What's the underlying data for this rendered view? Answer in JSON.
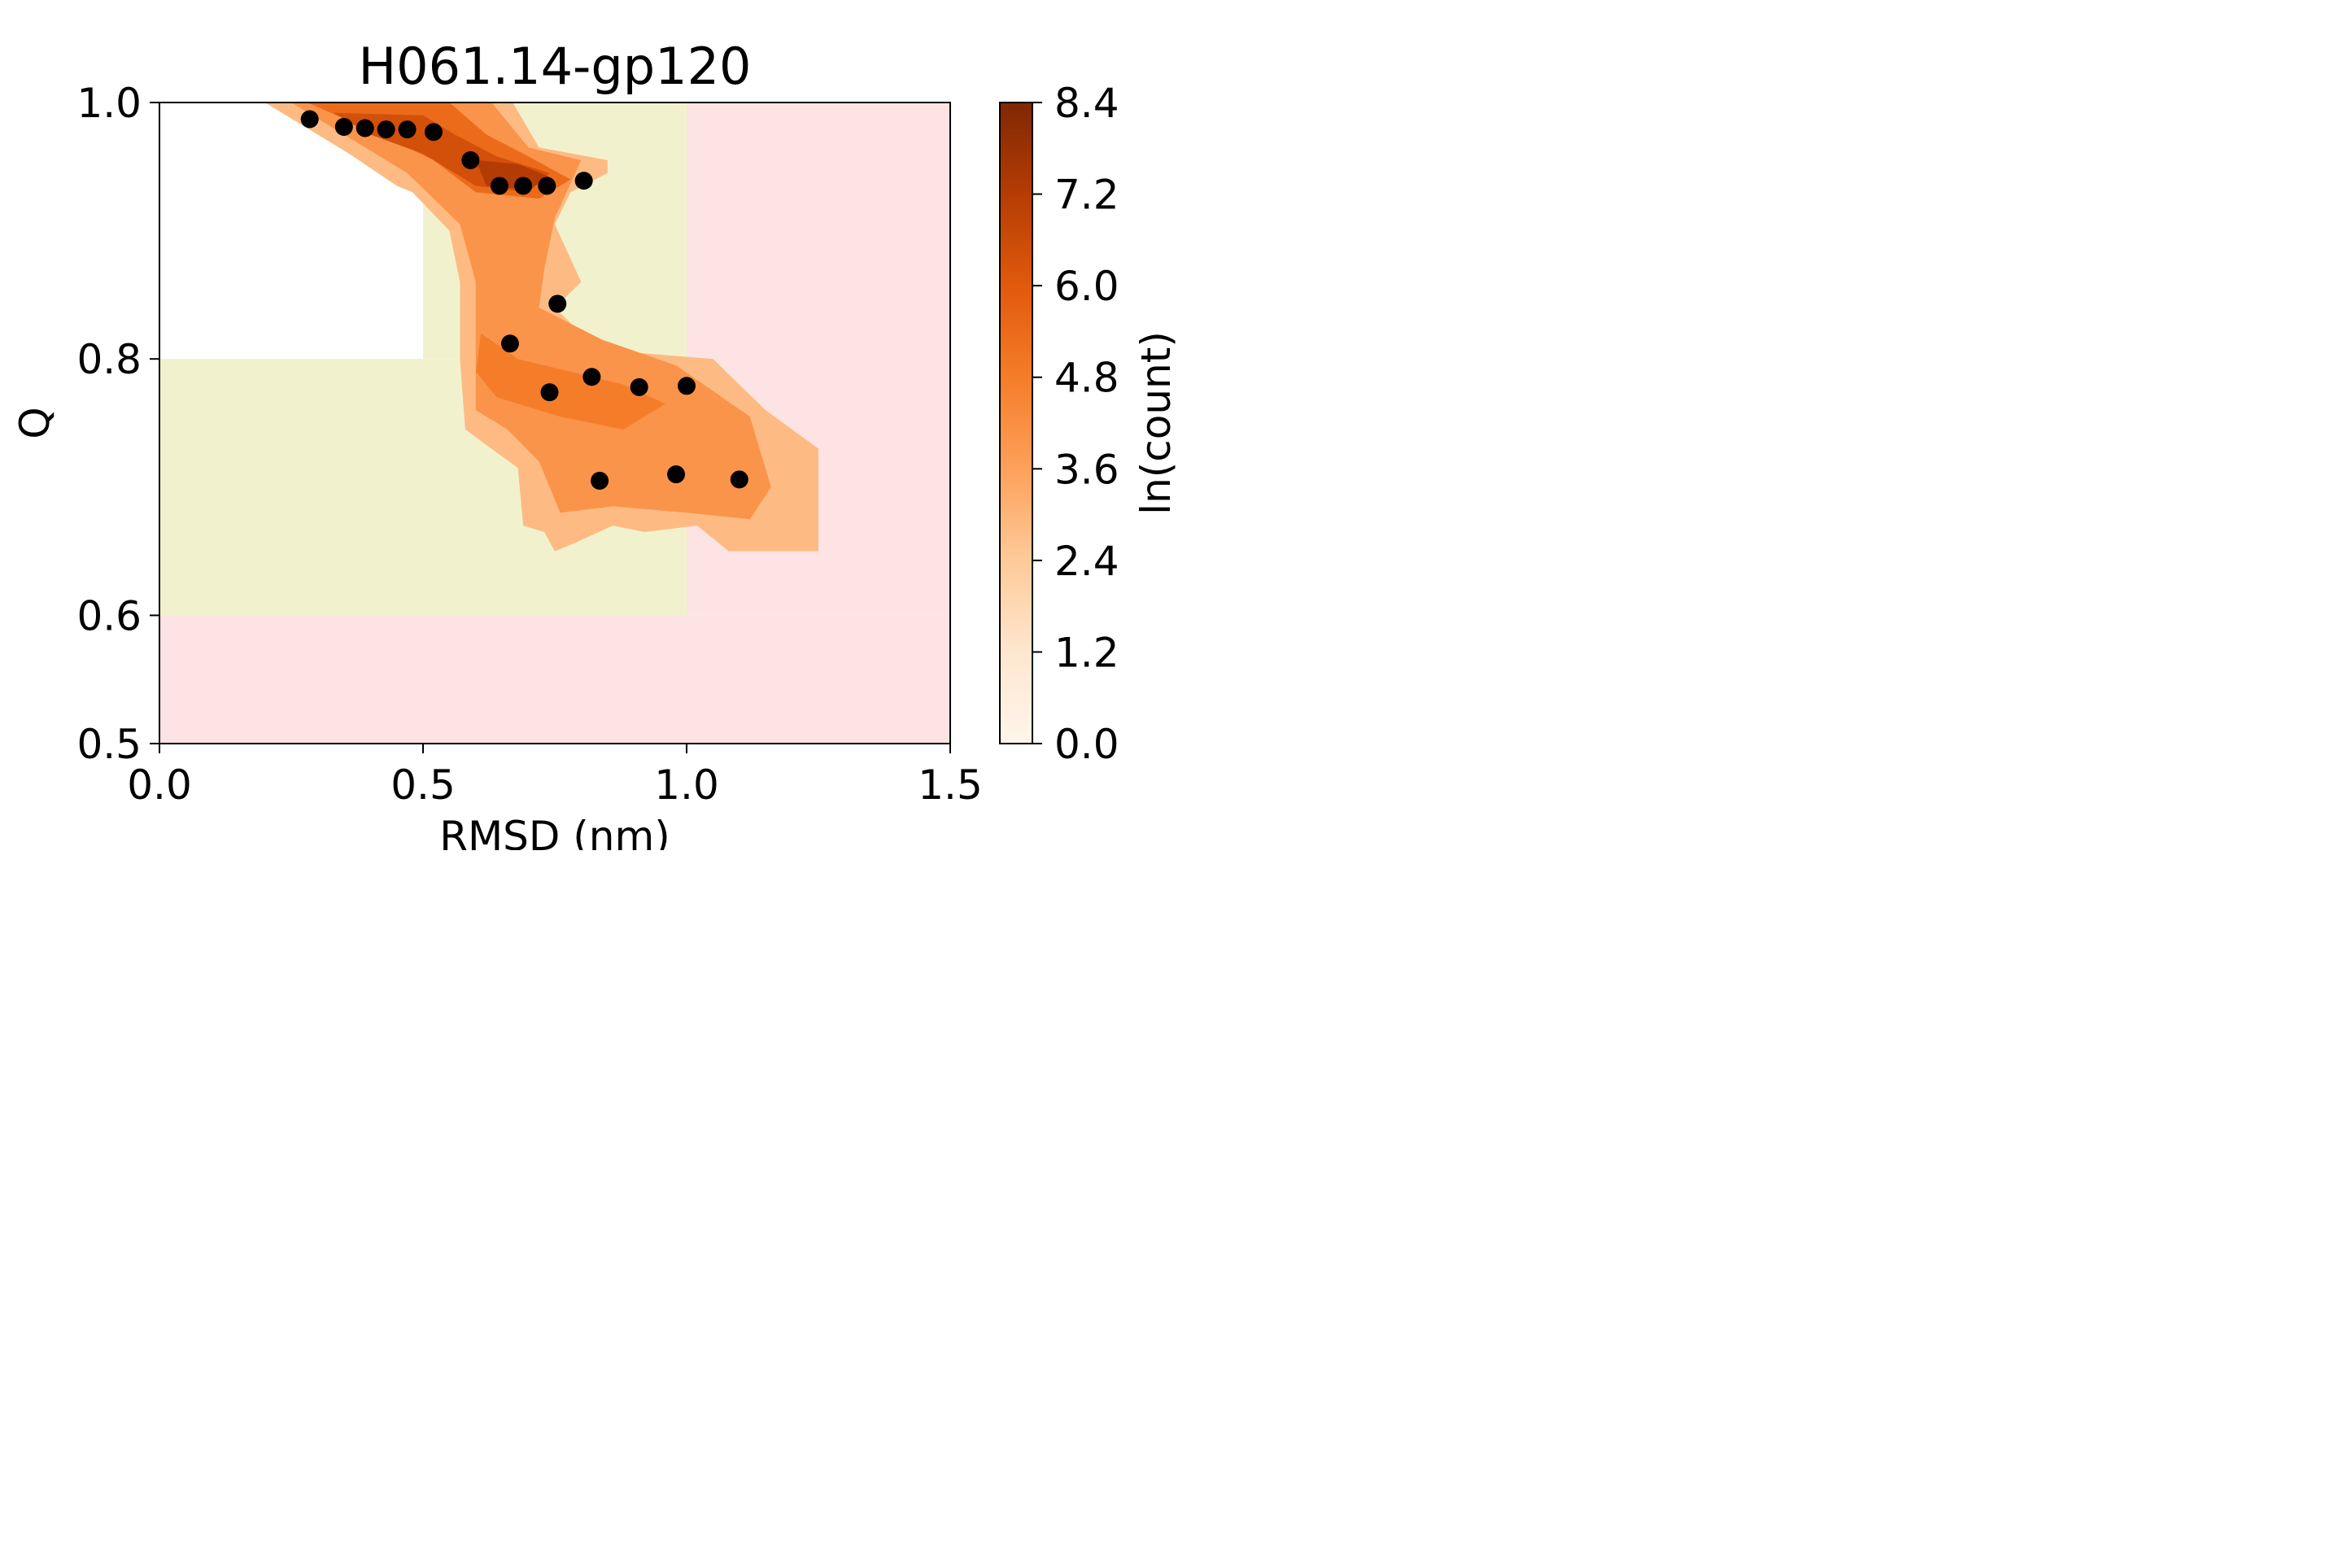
{
  "chart_data": {
    "type": "scatter",
    "title": "H061.14-gp120",
    "xlabel": "RMSD (nm)",
    "ylabel": "Q",
    "xlim": [
      0.0,
      1.5
    ],
    "ylim": [
      0.5,
      1.0
    ],
    "x_ticks": [
      "0.0",
      "0.5",
      "1.0",
      "1.5"
    ],
    "y_ticks": [
      "0.5",
      "0.6",
      "0.8",
      "1.0"
    ],
    "colorbar": {
      "label": "ln(count)",
      "range": [
        0.0,
        8.4
      ],
      "ticks": [
        "0.0",
        "1.2",
        "2.4",
        "3.6",
        "4.8",
        "6.0",
        "7.2",
        "8.4"
      ]
    },
    "background_regions": [
      {
        "x": [
          0.5,
          1.0
        ],
        "y": [
          0.8,
          1.0
        ],
        "color": "#f1f2cd"
      },
      {
        "x": [
          0.0,
          1.0
        ],
        "y": [
          0.6,
          0.8
        ],
        "color": "#f1f2cd"
      },
      {
        "x": [
          1.0,
          1.5
        ],
        "y": [
          0.6,
          1.0
        ],
        "color": "#fee3e4"
      },
      {
        "x": [
          0.0,
          1.5
        ],
        "y": [
          0.5,
          0.6
        ],
        "color": "#fee3e4"
      }
    ],
    "density_regions": [
      {
        "level": 2.8,
        "points": [
          [
            0.2,
            1.0
          ],
          [
            0.67,
            1.0
          ],
          [
            0.72,
            0.965
          ],
          [
            0.85,
            0.955
          ],
          [
            0.85,
            0.945
          ],
          [
            0.78,
            0.93
          ],
          [
            0.75,
            0.905
          ],
          [
            0.8,
            0.86
          ],
          [
            0.75,
            0.84
          ],
          [
            0.8,
            0.82
          ],
          [
            0.9,
            0.805
          ],
          [
            1.05,
            0.8
          ],
          [
            1.15,
            0.76
          ],
          [
            1.25,
            0.73
          ],
          [
            1.25,
            0.65
          ],
          [
            1.08,
            0.65
          ],
          [
            1.02,
            0.67
          ],
          [
            0.92,
            0.665
          ],
          [
            0.86,
            0.67
          ],
          [
            0.78,
            0.655
          ],
          [
            0.75,
            0.65
          ],
          [
            0.73,
            0.665
          ],
          [
            0.69,
            0.67
          ],
          [
            0.68,
            0.715
          ],
          [
            0.63,
            0.73
          ],
          [
            0.58,
            0.745
          ],
          [
            0.57,
            0.8
          ],
          [
            0.57,
            0.86
          ],
          [
            0.55,
            0.9
          ],
          [
            0.48,
            0.93
          ],
          [
            0.45,
            0.935
          ],
          [
            0.36,
            0.96
          ]
        ]
      },
      {
        "level": 4.0,
        "points": [
          [
            0.25,
            1.0
          ],
          [
            0.63,
            1.0
          ],
          [
            0.7,
            0.965
          ],
          [
            0.8,
            0.955
          ],
          [
            0.75,
            0.91
          ],
          [
            0.73,
            0.87
          ],
          [
            0.72,
            0.84
          ],
          [
            0.84,
            0.815
          ],
          [
            0.98,
            0.795
          ],
          [
            1.12,
            0.755
          ],
          [
            1.16,
            0.7
          ],
          [
            1.12,
            0.675
          ],
          [
            1.0,
            0.68
          ],
          [
            0.86,
            0.685
          ],
          [
            0.76,
            0.68
          ],
          [
            0.72,
            0.72
          ],
          [
            0.66,
            0.745
          ],
          [
            0.6,
            0.76
          ],
          [
            0.6,
            0.8
          ],
          [
            0.6,
            0.86
          ],
          [
            0.57,
            0.905
          ],
          [
            0.47,
            0.945
          ],
          [
            0.35,
            0.975
          ]
        ]
      },
      {
        "level": 4.8,
        "points": [
          [
            0.61,
            0.82
          ],
          [
            0.68,
            0.8
          ],
          [
            0.88,
            0.78
          ],
          [
            0.96,
            0.765
          ],
          [
            0.88,
            0.745
          ],
          [
            0.76,
            0.755
          ],
          [
            0.64,
            0.77
          ],
          [
            0.6,
            0.79
          ]
        ]
      },
      {
        "level": 5.4,
        "points": [
          [
            0.28,
            1.0
          ],
          [
            0.55,
            1.0
          ],
          [
            0.62,
            0.975
          ],
          [
            0.7,
            0.958
          ],
          [
            0.78,
            0.94
          ],
          [
            0.72,
            0.925
          ],
          [
            0.6,
            0.93
          ],
          [
            0.52,
            0.955
          ],
          [
            0.42,
            0.975
          ]
        ]
      },
      {
        "level": 6.4,
        "points": [
          [
            0.33,
            0.992
          ],
          [
            0.5,
            0.99
          ],
          [
            0.56,
            0.975
          ],
          [
            0.64,
            0.958
          ],
          [
            0.74,
            0.945
          ],
          [
            0.7,
            0.93
          ],
          [
            0.6,
            0.935
          ],
          [
            0.5,
            0.96
          ],
          [
            0.4,
            0.975
          ]
        ]
      },
      {
        "level": 7.2,
        "points": [
          [
            0.6,
            0.955
          ],
          [
            0.68,
            0.952
          ],
          [
            0.74,
            0.942
          ],
          [
            0.7,
            0.932
          ],
          [
            0.62,
            0.935
          ]
        ]
      }
    ],
    "points": [
      {
        "x": 0.285,
        "y": 0.987
      },
      {
        "x": 0.35,
        "y": 0.981
      },
      {
        "x": 0.39,
        "y": 0.98
      },
      {
        "x": 0.43,
        "y": 0.979
      },
      {
        "x": 0.47,
        "y": 0.979
      },
      {
        "x": 0.52,
        "y": 0.977
      },
      {
        "x": 0.59,
        "y": 0.955
      },
      {
        "x": 0.645,
        "y": 0.935
      },
      {
        "x": 0.69,
        "y": 0.935
      },
      {
        "x": 0.735,
        "y": 0.935
      },
      {
        "x": 0.805,
        "y": 0.939
      },
      {
        "x": 0.755,
        "y": 0.843
      },
      {
        "x": 0.665,
        "y": 0.812
      },
      {
        "x": 0.82,
        "y": 0.786
      },
      {
        "x": 0.91,
        "y": 0.778
      },
      {
        "x": 1.0,
        "y": 0.779
      },
      {
        "x": 0.74,
        "y": 0.774
      },
      {
        "x": 0.98,
        "y": 0.71
      },
      {
        "x": 1.1,
        "y": 0.706
      },
      {
        "x": 0.835,
        "y": 0.705
      }
    ]
  }
}
